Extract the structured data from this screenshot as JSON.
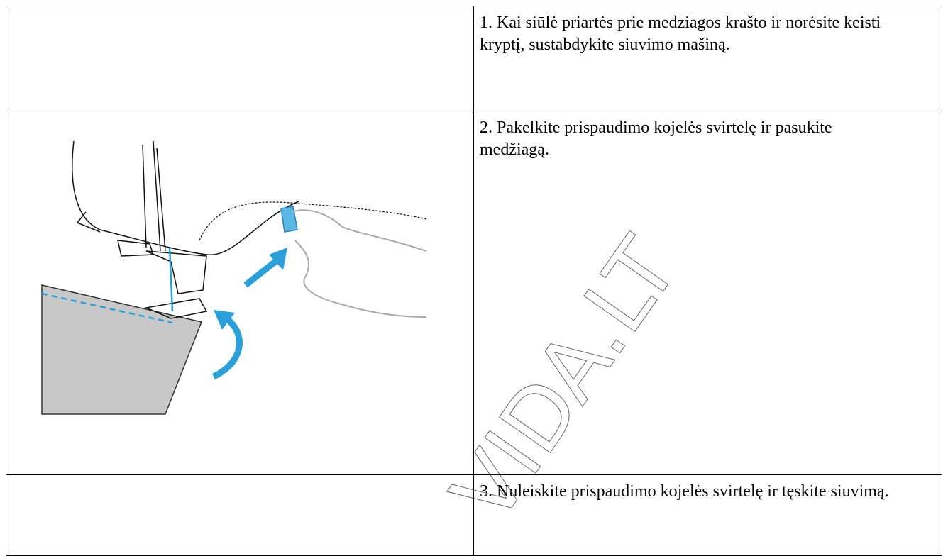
{
  "steps": [
    {
      "text": "1. Kai siūlė priartės prie medziagos krašto ir norėsite keisti kryptį, sustabdykite siuvimo mašiną."
    },
    {
      "text": "2. Pakelkite prispaudimo kojelės svirtelę ir pasukite medžiagą."
    },
    {
      "text": "3. Nuleiskite prispaudimo kojelės svirtelę ir tęskite siuvimą."
    }
  ],
  "watermark": "VIDA.LT"
}
